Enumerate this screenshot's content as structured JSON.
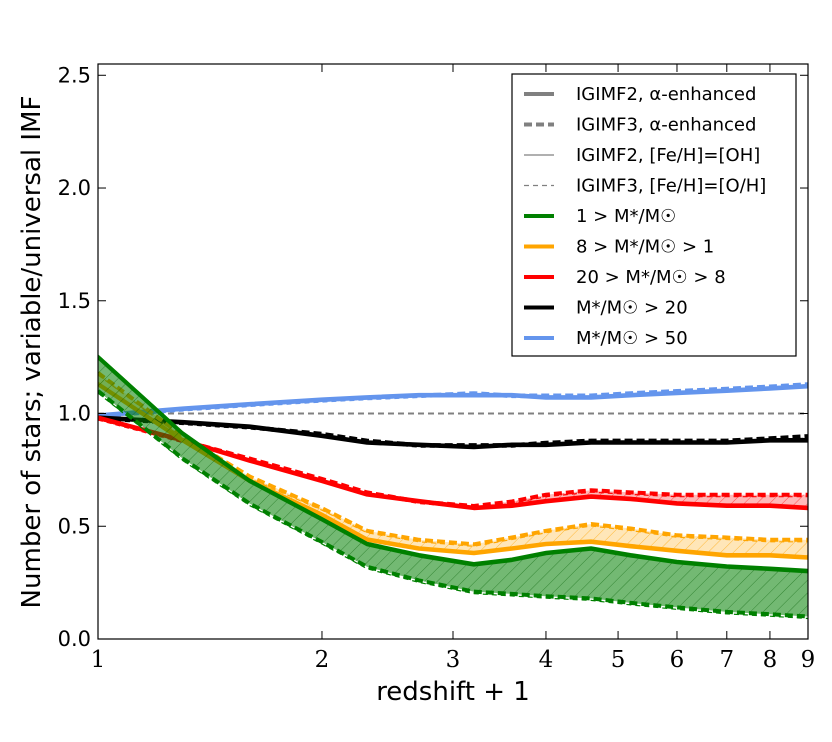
{
  "chart_data": {
    "type": "line",
    "title": "",
    "xlabel": "redshift + 1",
    "ylabel": "Number of stars; variable/universal IMF",
    "xscale": "log",
    "xlim": [
      1,
      9
    ],
    "ylim": [
      0.0,
      2.55
    ],
    "x_ticks": [
      1,
      2,
      3,
      4,
      5,
      6,
      7,
      8,
      9
    ],
    "x_tick_labels": [
      "1",
      "2",
      "3",
      "4",
      "5",
      "6",
      "7",
      "8",
      "9"
    ],
    "y_ticks": [
      0.0,
      0.5,
      1.0,
      1.5,
      2.0,
      2.5
    ],
    "y_tick_labels": [
      "0.0",
      "0.5",
      "1.0",
      "1.5",
      "2.0",
      "2.5"
    ],
    "grid": false,
    "legend_position": "top-right",
    "legend": [
      {
        "label": "IGIMF2, α-enhanced",
        "color": "#808080",
        "style": "solid-thick"
      },
      {
        "label": "IGIMF3, α-enhanced",
        "color": "#808080",
        "style": "dashed-thick"
      },
      {
        "label": "IGIMF2, [Fe/H]=[OH]",
        "color": "#808080",
        "style": "solid-thin"
      },
      {
        "label": "IGIMF3, [Fe/H]=[O/H]",
        "color": "#808080",
        "style": "dashed-thin"
      },
      {
        "label": "1 > M*/M☉",
        "color": "#008000",
        "style": "solid-thick"
      },
      {
        "label": "8 > M*/M☉ > 1",
        "color": "#ffa500",
        "style": "solid-thick"
      },
      {
        "label": "20 > M*/M☉ > 8",
        "color": "#ff0000",
        "style": "solid-thick"
      },
      {
        "label": "M*/M☉ > 20",
        "color": "#000000",
        "style": "solid-thick"
      },
      {
        "label": "M*/M☉ > 50",
        "color": "#6495ed",
        "style": "solid-thick"
      }
    ],
    "reference_line": {
      "y": 1.0,
      "color": "#808080",
      "style": "dashed"
    },
    "x": [
      1.0,
      1.3,
      1.6,
      2.0,
      2.3,
      2.7,
      3.2,
      3.6,
      4.0,
      4.6,
      5.2,
      6.0,
      7.0,
      8.0,
      9.0
    ],
    "series": [
      {
        "name": "M*/M☉ > 50",
        "color": "#6495ed",
        "igimf2_alpha": [
          0.99,
          1.02,
          1.04,
          1.06,
          1.07,
          1.08,
          1.08,
          1.08,
          1.07,
          1.07,
          1.08,
          1.09,
          1.1,
          1.11,
          1.12
        ],
        "igimf3_alpha": [
          0.99,
          1.02,
          1.04,
          1.06,
          1.07,
          1.08,
          1.09,
          1.08,
          1.08,
          1.08,
          1.09,
          1.1,
          1.11,
          1.12,
          1.13
        ],
        "fill": false
      },
      {
        "name": "M*/M☉ > 20",
        "color": "#000000",
        "igimf2_alpha": [
          0.98,
          0.96,
          0.94,
          0.9,
          0.87,
          0.86,
          0.85,
          0.86,
          0.86,
          0.87,
          0.87,
          0.87,
          0.87,
          0.88,
          0.88
        ],
        "igimf3_alpha": [
          0.98,
          0.96,
          0.94,
          0.91,
          0.88,
          0.86,
          0.86,
          0.86,
          0.87,
          0.88,
          0.88,
          0.88,
          0.88,
          0.89,
          0.9
        ],
        "fill": false
      },
      {
        "name": "20 > M*/M☉ > 8",
        "color": "#ff0000",
        "igimf2_alpha": [
          0.98,
          0.88,
          0.79,
          0.7,
          0.64,
          0.61,
          0.58,
          0.59,
          0.61,
          0.63,
          0.62,
          0.6,
          0.59,
          0.59,
          0.58
        ],
        "igimf3_alpha": [
          0.98,
          0.88,
          0.8,
          0.71,
          0.65,
          0.61,
          0.59,
          0.61,
          0.64,
          0.66,
          0.65,
          0.64,
          0.64,
          0.64,
          0.64
        ],
        "fill": true
      },
      {
        "name": "8 > M*/M☉ > 1",
        "color": "#ffa500",
        "igimf2_alpha": [
          1.13,
          0.88,
          0.7,
          0.55,
          0.44,
          0.4,
          0.38,
          0.4,
          0.42,
          0.43,
          0.41,
          0.39,
          0.37,
          0.37,
          0.36
        ],
        "igimf3_alpha": [
          1.18,
          0.9,
          0.72,
          0.58,
          0.48,
          0.44,
          0.42,
          0.45,
          0.48,
          0.51,
          0.49,
          0.46,
          0.45,
          0.44,
          0.44
        ],
        "fill": true
      },
      {
        "name": "1 > M*/M☉",
        "color": "#008000",
        "igimf2_alpha": [
          1.25,
          0.91,
          0.7,
          0.53,
          0.42,
          0.37,
          0.33,
          0.35,
          0.38,
          0.4,
          0.37,
          0.34,
          0.32,
          0.31,
          0.3
        ],
        "igimf3_alpha": [
          1.1,
          0.8,
          0.6,
          0.43,
          0.32,
          0.26,
          0.21,
          0.2,
          0.19,
          0.18,
          0.16,
          0.14,
          0.12,
          0.11,
          0.1
        ],
        "fill": true
      }
    ]
  }
}
